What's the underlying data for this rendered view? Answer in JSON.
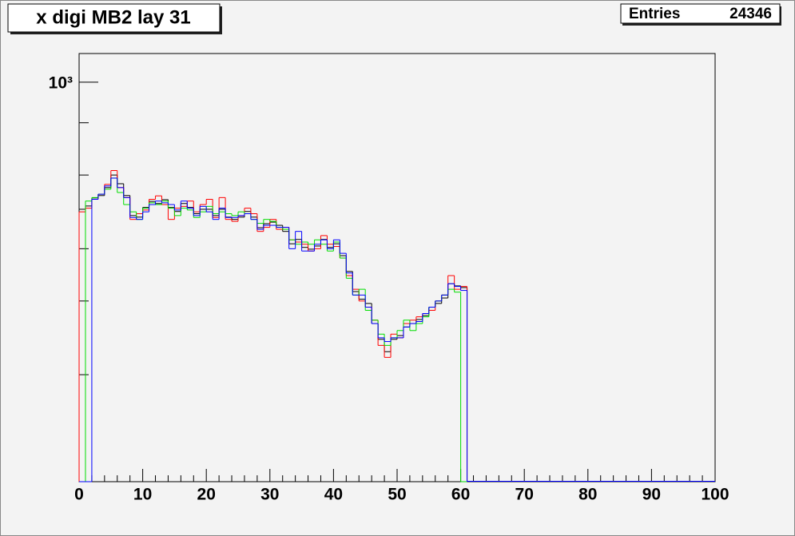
{
  "chart_data": {
    "type": "histogram",
    "title": "x digi MB2 lay 31",
    "stats": {
      "label": "Entries",
      "value": 24346
    },
    "log_y": true,
    "xlim": [
      0,
      100
    ],
    "xticks": [
      0,
      10,
      20,
      30,
      40,
      50,
      60,
      70,
      80,
      90,
      100
    ],
    "xminorticks": [
      2,
      4,
      6,
      8,
      12,
      14,
      16,
      18,
      22,
      24,
      26,
      28,
      32,
      34,
      36,
      38,
      42,
      44,
      46,
      48,
      52,
      54,
      56,
      58,
      62,
      64,
      66,
      68,
      72,
      74,
      76,
      78,
      82,
      84,
      86,
      88,
      92,
      94,
      96,
      98
    ],
    "ylim": [
      111,
      1171
    ],
    "yticks": [
      {
        "value": 1000,
        "label": "10³"
      }
    ],
    "yminorticks": [
      200,
      300,
      400,
      600,
      800
    ],
    "bins": [
      0,
      1,
      2,
      3,
      4,
      5,
      6,
      7,
      8,
      9,
      10,
      11,
      12,
      13,
      14,
      15,
      16,
      17,
      18,
      19,
      20,
      21,
      22,
      23,
      24,
      25,
      26,
      27,
      28,
      29,
      30,
      31,
      32,
      33,
      34,
      35,
      36,
      37,
      38,
      39,
      40,
      41,
      42,
      43,
      44,
      45,
      46,
      47,
      48,
      49,
      50,
      51,
      52,
      53,
      54,
      55,
      56,
      57,
      58,
      59,
      60,
      61
    ],
    "series": [
      {
        "color": "#000000",
        "values": [
          497,
          506,
          529,
          536,
          560,
          600,
          572,
          536,
          480,
          476,
          502,
          519,
          513,
          524,
          502,
          491,
          513,
          502,
          485,
          497,
          497,
          480,
          497,
          476,
          470,
          476,
          491,
          476,
          449,
          459,
          463,
          455,
          440,
          411,
          421,
          403,
          399,
          406,
          421,
          403,
          411,
          385,
          353,
          316,
          303,
          296,
          265,
          243,
          227,
          243,
          248,
          260,
          265,
          271,
          277,
          290,
          296,
          305,
          330,
          326,
          323
        ]
      },
      {
        "color": "#ff0000",
        "values": [
          490,
          500,
          525,
          540,
          570,
          615,
          560,
          530,
          470,
          485,
          495,
          525,
          535,
          510,
          470,
          500,
          505,
          520,
          490,
          510,
          525,
          475,
          530,
          470,
          465,
          480,
          500,
          485,
          440,
          450,
          470,
          445,
          450,
          420,
          415,
          410,
          395,
          400,
          430,
          410,
          405,
          380,
          345,
          320,
          300,
          290,
          270,
          235,
          220,
          250,
          245,
          265,
          270,
          275,
          280,
          285,
          300,
          310,
          345,
          320,
          325
        ]
      },
      {
        "color": "#00dd00",
        "values": [
          0,
          520,
          530,
          540,
          555,
          590,
          545,
          510,
          490,
          470,
          500,
          515,
          510,
          520,
          500,
          480,
          500,
          495,
          475,
          490,
          505,
          485,
          490,
          485,
          480,
          490,
          485,
          470,
          460,
          470,
          465,
          450,
          445,
          420,
          410,
          415,
          410,
          420,
          410,
          395,
          415,
          380,
          340,
          310,
          320,
          285,
          270,
          250,
          235,
          245,
          255,
          270,
          255,
          265,
          275,
          290,
          300,
          310,
          320,
          315,
          0
        ]
      },
      {
        "color": "#0000ff",
        "values": [
          0,
          0,
          525,
          540,
          565,
          590,
          560,
          530,
          475,
          470,
          490,
          510,
          520,
          515,
          510,
          495,
          520,
          500,
          480,
          505,
          490,
          470,
          500,
          475,
          475,
          480,
          485,
          470,
          445,
          455,
          455,
          450,
          450,
          400,
          440,
          395,
          395,
          410,
          420,
          400,
          420,
          390,
          350,
          310,
          310,
          290,
          265,
          245,
          240,
          245,
          245,
          260,
          265,
          268,
          280,
          290,
          300,
          310,
          330,
          325,
          318
        ]
      }
    ]
  }
}
